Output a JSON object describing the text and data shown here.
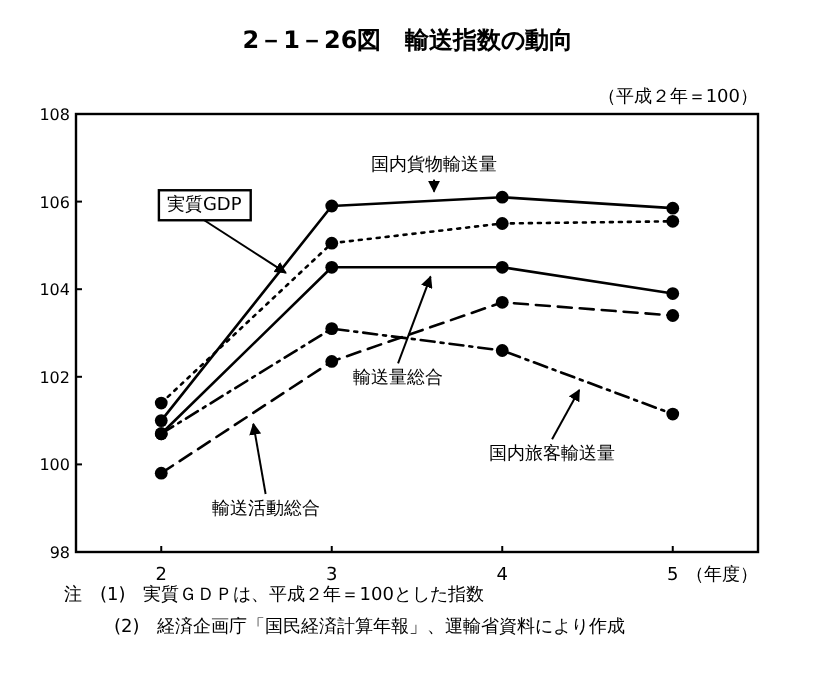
{
  "chart_data": {
    "type": "line",
    "title": "2－1－26図　輸送指数の動向",
    "subtitle": "（平成２年＝100）",
    "xlabel": "（年度）",
    "x": [
      2,
      3,
      4,
      5
    ],
    "xlim": [
      1.5,
      5.5
    ],
    "xticks": [
      2,
      3,
      4,
      5
    ],
    "ylim": [
      98,
      108
    ],
    "yticks": [
      98,
      100,
      102,
      104,
      106,
      108
    ],
    "grid": false,
    "marker": "circle",
    "series": [
      {
        "color": "#000000",
        "line_style": "solid",
        "values": [
          101.0,
          105.9,
          106.1,
          105.85
        ]
      },
      {
        "color": "#000000",
        "line_style": "dotted",
        "values": [
          101.4,
          105.05,
          105.5,
          105.55
        ]
      },
      {
        "color": "#000000",
        "line_style": "solid",
        "values": [
          100.7,
          104.5,
          104.5,
          103.9
        ]
      },
      {
        "color": "#000000",
        "line_style": "dashdot",
        "values": [
          100.7,
          103.1,
          102.6,
          101.15
        ]
      },
      {
        "color": "#000000",
        "line_style": "dashed",
        "values": [
          99.8,
          102.35,
          103.7,
          103.4
        ]
      }
    ],
    "annotations": [
      {
        "text": "国内貨物輸送量",
        "x": 3.6,
        "y": 106.0
      },
      {
        "text": "実質GDP",
        "x": 2.78,
        "y": 104.25
      },
      {
        "text": "輸送量総合",
        "x": 3.6,
        "y": 104.5
      },
      {
        "text": "国内旅客輸送量",
        "x": 4.48,
        "y": 101.9
      },
      {
        "text": "輸送活動総合",
        "x": 2.53,
        "y": 101.15
      },
      "注　(1)　実質ＧＤＰは、平成２年＝100とした指数",
      "(2)　経済企画庁「国民経済計算年報」、運輸省資料により作成"
    ]
  }
}
